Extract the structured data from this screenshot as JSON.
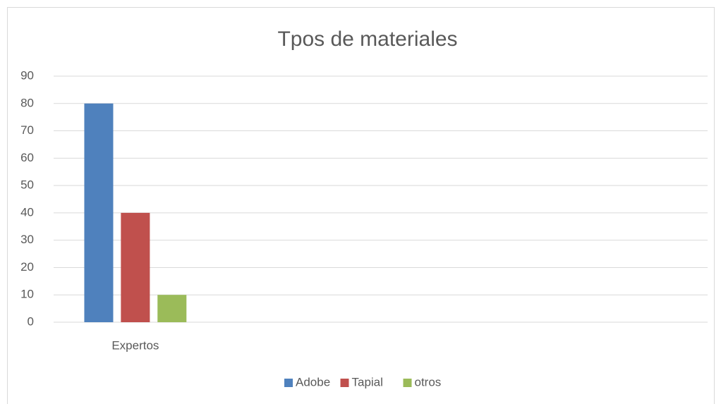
{
  "chart_data": {
    "type": "bar",
    "title": "Tpos de materiales",
    "categories": [
      "Expertos",
      null,
      null,
      null
    ],
    "series": [
      {
        "name": "Adobe",
        "color": "#4f81bd",
        "values": [
          80,
          null,
          null,
          null
        ]
      },
      {
        "name": "Tapial",
        "color": "#c0504d",
        "values": [
          40,
          null,
          null,
          null
        ]
      },
      {
        "name": "otros",
        "color": "#9bbb59",
        "values": [
          10,
          null,
          null,
          null
        ]
      }
    ],
    "ylim": [
      0,
      90
    ],
    "yticks": [
      0,
      10,
      20,
      30,
      40,
      50,
      60,
      70,
      80,
      90
    ],
    "grid": true,
    "legend": "bottom"
  }
}
